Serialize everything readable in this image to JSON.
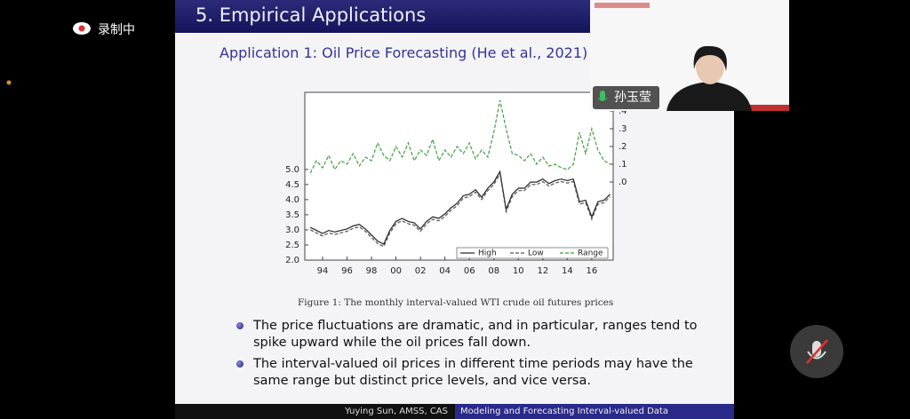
{
  "recording": {
    "label": "录制中"
  },
  "slide": {
    "title": "5. Empirical Applications",
    "subtitle": "Application 1: Oil Price Forecasting (He et al., 2021)",
    "caption": "Figure 1: The monthly interval-valued WTI crude oil futures prices",
    "bullets": [
      "The price fluctuations are dramatic, and in particular, ranges tend to spike upward while the oil prices fall down.",
      "The interval-valued oil prices in different time periods may have the same range but distinct price levels, and vice versa."
    ],
    "footer": {
      "author": "Yuying Sun, AMSS, CAS",
      "talk": "Modeling and Forecasting Interval-valued Data"
    }
  },
  "participant": {
    "name": "孙玉莹"
  },
  "chart_data": {
    "type": "line",
    "x": [
      1993.0,
      1993.5,
      1994.0,
      1994.5,
      1995.0,
      1995.5,
      1996.0,
      1996.5,
      1997.0,
      1997.5,
      1998.0,
      1998.5,
      1999.0,
      1999.5,
      2000.0,
      2000.5,
      2001.0,
      2001.5,
      2002.0,
      2002.5,
      2003.0,
      2003.5,
      2004.0,
      2004.5,
      2005.0,
      2005.5,
      2006.0,
      2006.5,
      2007.0,
      2007.5,
      2008.0,
      2008.5,
      2009.0,
      2009.5,
      2010.0,
      2010.5,
      2011.0,
      2011.5,
      2012.0,
      2012.5,
      2013.0,
      2013.5,
      2014.0,
      2014.5,
      2015.0,
      2015.5,
      2016.0,
      2016.5,
      2017.0,
      2017.5
    ],
    "series": [
      {
        "name": "High",
        "color": "#222222",
        "line_style": "solid",
        "values": [
          3.08,
          2.98,
          2.88,
          2.98,
          2.93,
          2.98,
          3.03,
          3.13,
          3.18,
          3.03,
          2.83,
          2.63,
          2.53,
          2.98,
          3.28,
          3.38,
          3.28,
          3.23,
          3.03,
          3.28,
          3.43,
          3.38,
          3.53,
          3.73,
          3.88,
          4.13,
          4.18,
          4.33,
          4.08,
          4.38,
          4.58,
          4.93,
          3.68,
          4.18,
          4.38,
          4.38,
          4.58,
          4.58,
          4.68,
          4.53,
          4.63,
          4.68,
          4.63,
          4.68,
          3.93,
          3.98,
          3.43,
          3.93,
          3.98,
          4.18
        ]
      },
      {
        "name": "Low",
        "color": "#555555",
        "line_style": "dashed",
        "values": [
          3.0,
          2.9,
          2.8,
          2.9,
          2.85,
          2.9,
          2.95,
          3.05,
          3.1,
          2.95,
          2.75,
          2.55,
          2.45,
          2.9,
          3.2,
          3.3,
          3.2,
          3.15,
          2.95,
          3.2,
          3.35,
          3.3,
          3.45,
          3.65,
          3.8,
          4.05,
          4.1,
          4.25,
          4.0,
          4.3,
          4.5,
          4.85,
          3.6,
          4.1,
          4.3,
          4.3,
          4.5,
          4.5,
          4.6,
          4.45,
          4.55,
          4.6,
          4.55,
          4.6,
          3.85,
          3.9,
          3.35,
          3.85,
          3.9,
          4.1
        ]
      },
      {
        "name": "Range",
        "color": "#3f9f3f",
        "line_style": "dashed",
        "axis": "y2",
        "values": [
          0.05,
          0.12,
          0.08,
          0.15,
          0.07,
          0.12,
          0.1,
          0.16,
          0.09,
          0.14,
          0.12,
          0.22,
          0.15,
          0.12,
          0.2,
          0.14,
          0.22,
          0.12,
          0.18,
          0.15,
          0.24,
          0.12,
          0.18,
          0.14,
          0.2,
          0.16,
          0.22,
          0.13,
          0.18,
          0.14,
          0.28,
          0.46,
          0.3,
          0.16,
          0.15,
          0.12,
          0.16,
          0.1,
          0.14,
          0.09,
          0.1,
          0.08,
          0.07,
          0.1,
          0.28,
          0.16,
          0.3,
          0.18,
          0.12,
          0.1
        ]
      }
    ],
    "xlim": [
      1992.55,
      2017.75
    ],
    "xticks": [
      {
        "value": 1994,
        "label": "94"
      },
      {
        "value": 1996,
        "label": "96"
      },
      {
        "value": 1998,
        "label": "98"
      },
      {
        "value": 2000,
        "label": "00"
      },
      {
        "value": 2002,
        "label": "02"
      },
      {
        "value": 2004,
        "label": "04"
      },
      {
        "value": 2006,
        "label": "06"
      },
      {
        "value": 2008,
        "label": "08"
      },
      {
        "value": 2010,
        "label": "10"
      },
      {
        "value": 2012,
        "label": "12"
      },
      {
        "value": 2014,
        "label": "14"
      },
      {
        "value": 2016,
        "label": "16"
      }
    ],
    "ylim": [
      2.0,
      7.55
    ],
    "yticks": [
      {
        "value": 2,
        "label": "2.0"
      },
      2.5,
      {
        "value": 3,
        "label": "3.0"
      },
      3.5,
      {
        "value": 4,
        "label": "4.0"
      },
      4.5,
      {
        "value": 5,
        "label": "5.0"
      }
    ],
    "y2lim": [
      -0.44,
      0.505
    ],
    "y2ticks": [
      {
        "value": 0,
        "label": ".0"
      },
      {
        "value": 0.1,
        "label": ".1"
      },
      {
        "value": 0.2,
        "label": ".2"
      },
      {
        "value": 0.3,
        "label": ".3"
      },
      {
        "value": 0.4,
        "label": ".4"
      }
    ],
    "legend": "lower right"
  }
}
